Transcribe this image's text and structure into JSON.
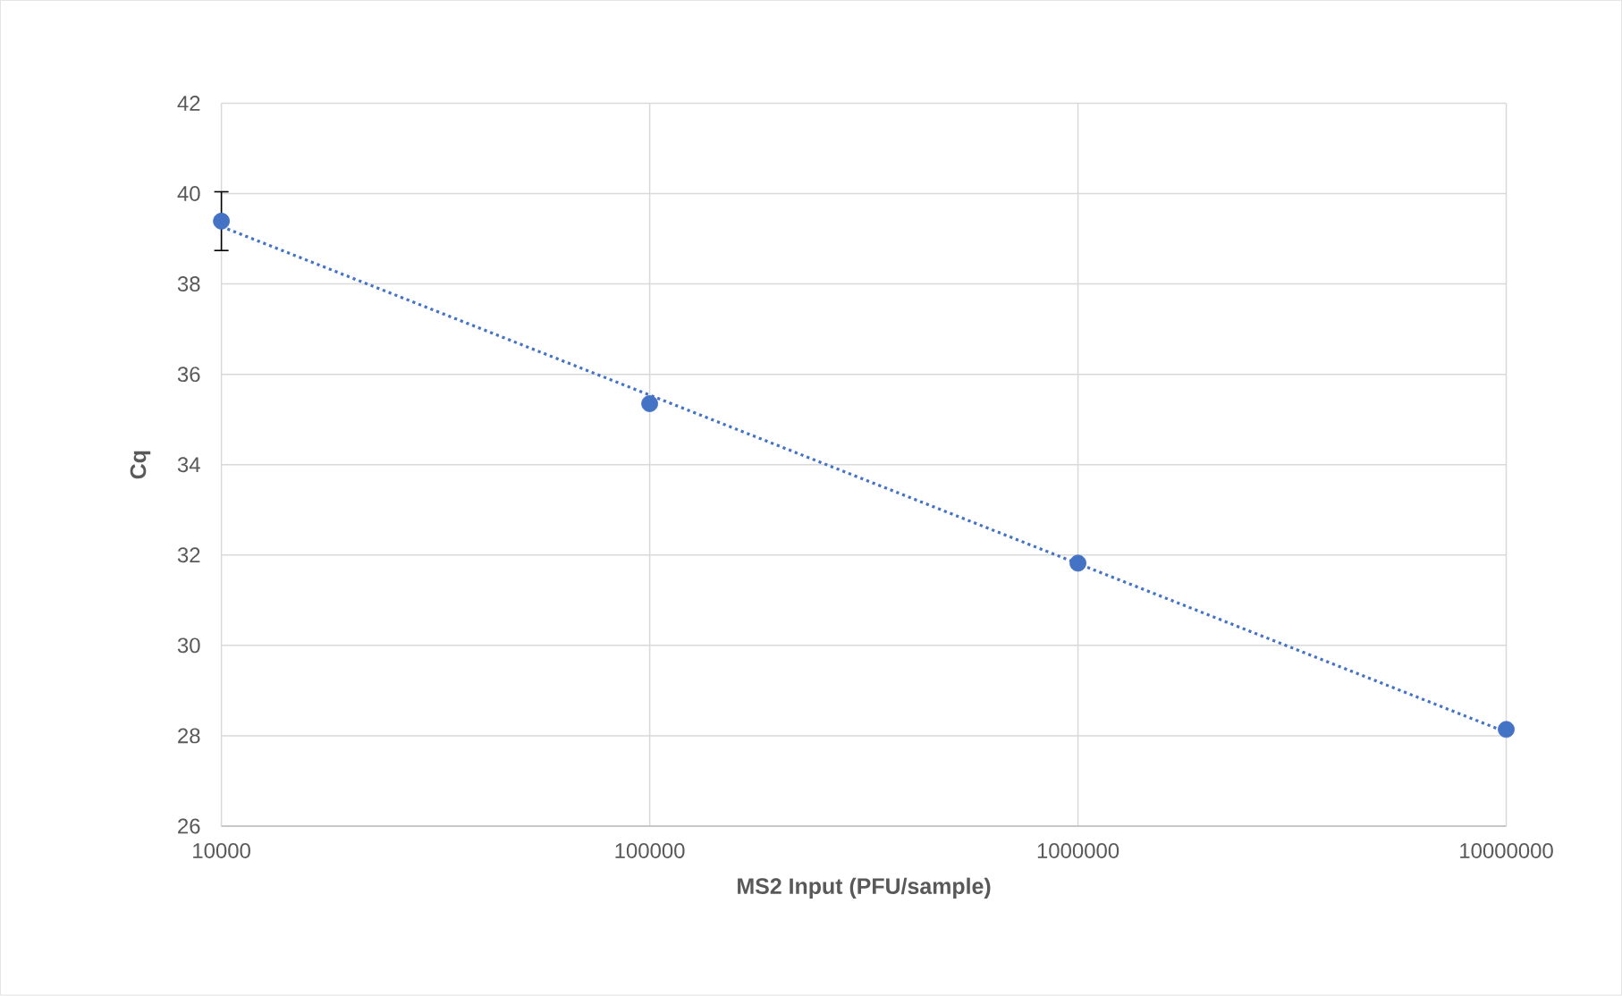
{
  "chart_data": {
    "type": "scatter",
    "xlabel": "MS2 Input (PFU/sample)",
    "ylabel": "Cq",
    "log": "x",
    "grid": true,
    "xlim": [
      10000,
      10000000
    ],
    "xticks": [
      10000,
      100000,
      1000000,
      10000000
    ],
    "ylim": [
      26,
      42
    ],
    "yticks": [
      26,
      28,
      30,
      32,
      34,
      36,
      38,
      40,
      42
    ],
    "series": [
      {
        "marker": "circle",
        "color": "#4472c4",
        "x": [
          10000,
          100000,
          1000000,
          10000000
        ],
        "values": [
          39.39,
          35.35,
          31.82,
          28.14
        ],
        "errors": [
          0.65,
          null,
          null,
          null
        ]
      },
      {
        "type": "line",
        "marker": "none",
        "line_style": "dotted",
        "color": "#4472c4",
        "x": [
          10000,
          10000000
        ],
        "values": [
          39.27,
          28.08
        ]
      }
    ]
  }
}
